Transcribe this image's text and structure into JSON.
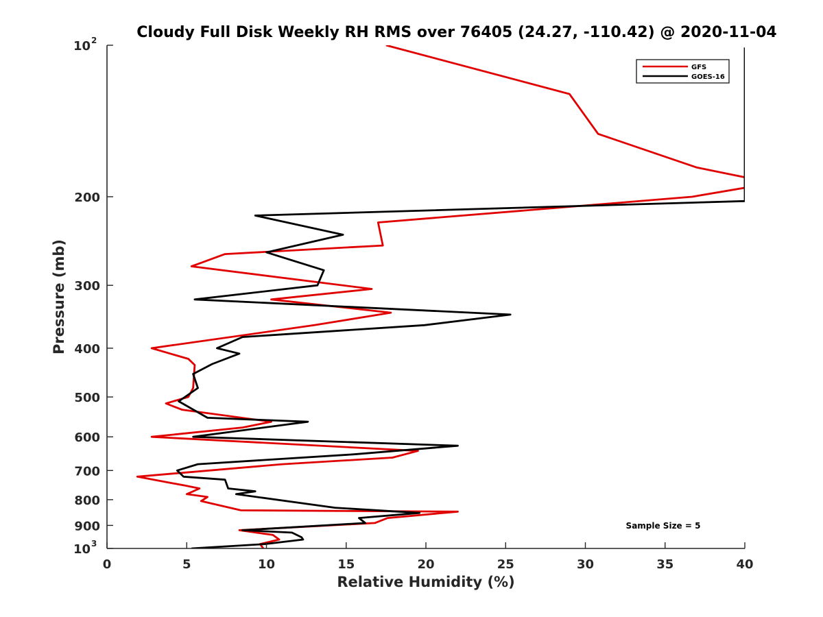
{
  "chart_data": {
    "type": "line",
    "title": "Cloudy Full Disk Weekly RH RMS over 76405 (24.27, -110.42) @ 2020-11-04",
    "xlabel": "Relative Humidity (%)",
    "ylabel": "Pressure (mb)",
    "xlim": [
      0,
      40
    ],
    "ylim": [
      100,
      1000
    ],
    "yscale": "log",
    "y_reversed": true,
    "grid": false,
    "legend_position": "top-right",
    "x_ticks": [
      "0",
      "5",
      "10",
      "15",
      "20",
      "25",
      "30",
      "35",
      "40"
    ],
    "y_ticks": [
      {
        "value": 100,
        "base": "10",
        "exp": "2"
      },
      {
        "value": 200,
        "label": "200"
      },
      {
        "value": 300,
        "label": "300"
      },
      {
        "value": 400,
        "label": "400"
      },
      {
        "value": 500,
        "label": "500"
      },
      {
        "value": 600,
        "label": "600"
      },
      {
        "value": 700,
        "label": "700"
      },
      {
        "value": 800,
        "label": "800"
      },
      {
        "value": 900,
        "label": "900"
      },
      {
        "value": 1000,
        "base": "10",
        "exp": "3"
      }
    ],
    "annotation": "Sample Size = 5",
    "series": [
      {
        "name": "GFS",
        "color": "#e00000",
        "points": [
          [
            17.5,
            100
          ],
          [
            29.0,
            125
          ],
          [
            30.8,
            150
          ],
          [
            37.0,
            175
          ],
          [
            40.0,
            183
          ],
          [
            40.0,
            192
          ],
          [
            36.7,
            200
          ],
          [
            17.0,
            225
          ],
          [
            17.3,
            250
          ],
          [
            7.4,
            260
          ],
          [
            5.3,
            275
          ],
          [
            16.6,
            305
          ],
          [
            10.3,
            320
          ],
          [
            17.8,
            340
          ],
          [
            13.0,
            360
          ],
          [
            2.8,
            400
          ],
          [
            5.1,
            420
          ],
          [
            5.5,
            432
          ],
          [
            5.4,
            480
          ],
          [
            5.1,
            500
          ],
          [
            3.7,
            515
          ],
          [
            4.7,
            530
          ],
          [
            10.3,
            560
          ],
          [
            8.5,
            575
          ],
          [
            2.8,
            600
          ],
          [
            19.5,
            640
          ],
          [
            17.9,
            660
          ],
          [
            11.0,
            680
          ],
          [
            1.9,
            720
          ],
          [
            4.9,
            750
          ],
          [
            5.8,
            760
          ],
          [
            5.0,
            780
          ],
          [
            6.3,
            790
          ],
          [
            5.9,
            805
          ],
          [
            8.4,
            840
          ],
          [
            22.0,
            845
          ],
          [
            17.6,
            870
          ],
          [
            16.8,
            890
          ],
          [
            8.3,
            920
          ],
          [
            10.4,
            940
          ],
          [
            10.8,
            960
          ],
          [
            9.6,
            980
          ],
          [
            9.8,
            1000
          ]
        ]
      },
      {
        "name": "GOES-16",
        "color": "#000000",
        "points": [
          [
            40.0,
            101
          ],
          [
            40.0,
            204
          ],
          [
            9.3,
            218
          ],
          [
            14.8,
            238
          ],
          [
            10.0,
            258
          ],
          [
            13.6,
            280
          ],
          [
            13.2,
            300
          ],
          [
            5.5,
            320
          ],
          [
            25.3,
            343
          ],
          [
            19.9,
            360
          ],
          [
            8.5,
            380
          ],
          [
            6.9,
            400
          ],
          [
            8.3,
            410
          ],
          [
            6.6,
            430
          ],
          [
            5.4,
            450
          ],
          [
            5.7,
            480
          ],
          [
            4.5,
            510
          ],
          [
            6.3,
            550
          ],
          [
            12.6,
            560
          ],
          [
            5.4,
            600
          ],
          [
            22.0,
            625
          ],
          [
            15.5,
            650
          ],
          [
            5.7,
            680
          ],
          [
            4.4,
            700
          ],
          [
            4.8,
            720
          ],
          [
            7.4,
            730
          ],
          [
            7.6,
            760
          ],
          [
            9.3,
            770
          ],
          [
            8.1,
            780
          ],
          [
            14.3,
            830
          ],
          [
            19.6,
            850
          ],
          [
            15.8,
            870
          ],
          [
            16.2,
            890
          ],
          [
            8.5,
            920
          ],
          [
            11.6,
            930
          ],
          [
            12.2,
            950
          ],
          [
            12.3,
            960
          ],
          [
            9.9,
            980
          ],
          [
            5.3,
            1000
          ]
        ]
      }
    ]
  }
}
